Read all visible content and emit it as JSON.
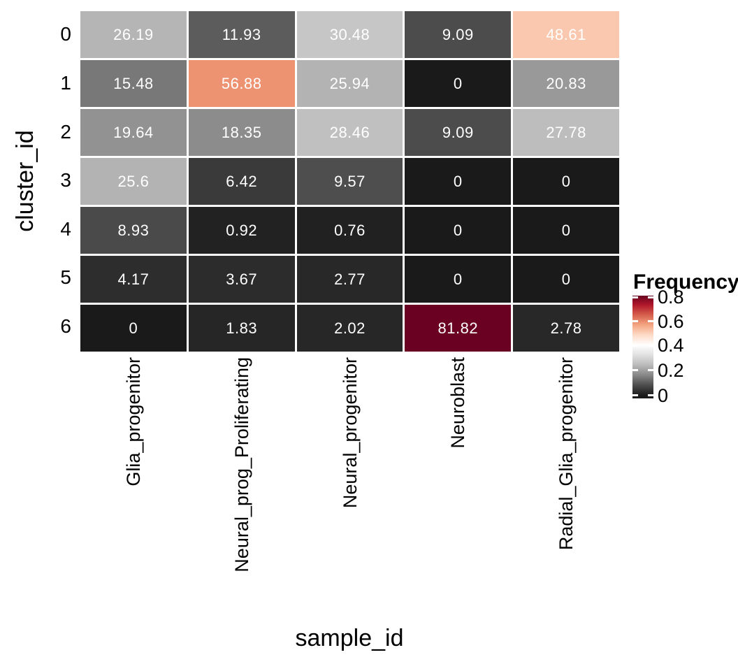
{
  "chart_data": {
    "type": "heatmap",
    "title": "",
    "xlabel": "sample_id",
    "ylabel": "cluster_id",
    "x_categories": [
      "Glia_progenitor",
      "Neural_prog_Proliferating",
      "Neural_progenitor",
      "Neuroblast",
      "Radial_Glia_progenitor"
    ],
    "y_categories": [
      "0",
      "1",
      "2",
      "3",
      "4",
      "5",
      "6"
    ],
    "values_percent": [
      [
        26.19,
        11.93,
        30.48,
        9.09,
        48.61
      ],
      [
        15.48,
        56.88,
        25.94,
        0,
        20.83
      ],
      [
        19.64,
        18.35,
        28.46,
        9.09,
        27.78
      ],
      [
        25.6,
        6.42,
        9.57,
        0,
        0
      ],
      [
        8.93,
        0.92,
        0.76,
        0,
        0
      ],
      [
        4.17,
        3.67,
        2.77,
        0,
        0
      ],
      [
        0,
        1.83,
        2.02,
        81.82,
        2.78
      ]
    ],
    "cell_labels": [
      [
        "26.19",
        "11.93",
        "30.48",
        "9.09",
        "48.61"
      ],
      [
        "15.48",
        "56.88",
        "25.94",
        "0",
        "20.83"
      ],
      [
        "19.64",
        "18.35",
        "28.46",
        "9.09",
        "27.78"
      ],
      [
        "25.6",
        "6.42",
        "9.57",
        "0",
        "0"
      ],
      [
        "8.93",
        "0.92",
        "0.76",
        "0",
        "0"
      ],
      [
        "4.17",
        "3.67",
        "2.77",
        "0",
        "0"
      ],
      [
        "0",
        "1.83",
        "2.02",
        "81.82",
        "2.78"
      ]
    ],
    "cell_colors": [
      [
        "#b5b5b5",
        "#5c5c5c",
        "#c6c6c6",
        "#4c4c4c",
        "#f9c8ae"
      ],
      [
        "#787878",
        "#ee9372",
        "#b3b3b3",
        "#1a1a1a",
        "#999999"
      ],
      [
        "#929292",
        "#8c8c8c",
        "#c0c0c0",
        "#4c4c4c",
        "#bdbdbd"
      ],
      [
        "#b3b3b3",
        "#3a3a3a",
        "#4e4e4e",
        "#1a1a1a",
        "#1a1a1a"
      ],
      [
        "#4a4a4a",
        "#222222",
        "#212121",
        "#1a1a1a",
        "#1a1a1a"
      ],
      [
        "#2d2d2d",
        "#2c2c2c",
        "#282828",
        "#1a1a1a",
        "#1a1a1a"
      ],
      [
        "#1a1a1a",
        "#262626",
        "#272727",
        "#6b0122",
        "#282828"
      ]
    ],
    "cell_text_color": "#ffffff",
    "grid_gap_color": "#ffffff",
    "legend": {
      "title": "Frequency",
      "tick_labels": [
        "0.8",
        "0.6",
        "0.4",
        "0.2",
        "0"
      ],
      "range": [
        0,
        0.8182
      ],
      "gradient_colors": [
        "#1a1a1a",
        "#4d4d4d",
        "#878787",
        "#bababa",
        "#e0e0e0",
        "#ffffff",
        "#fddbc7",
        "#f4a582",
        "#d6604d",
        "#b2182b",
        "#67001f"
      ],
      "tick_mark_color": "#ffffff"
    }
  }
}
